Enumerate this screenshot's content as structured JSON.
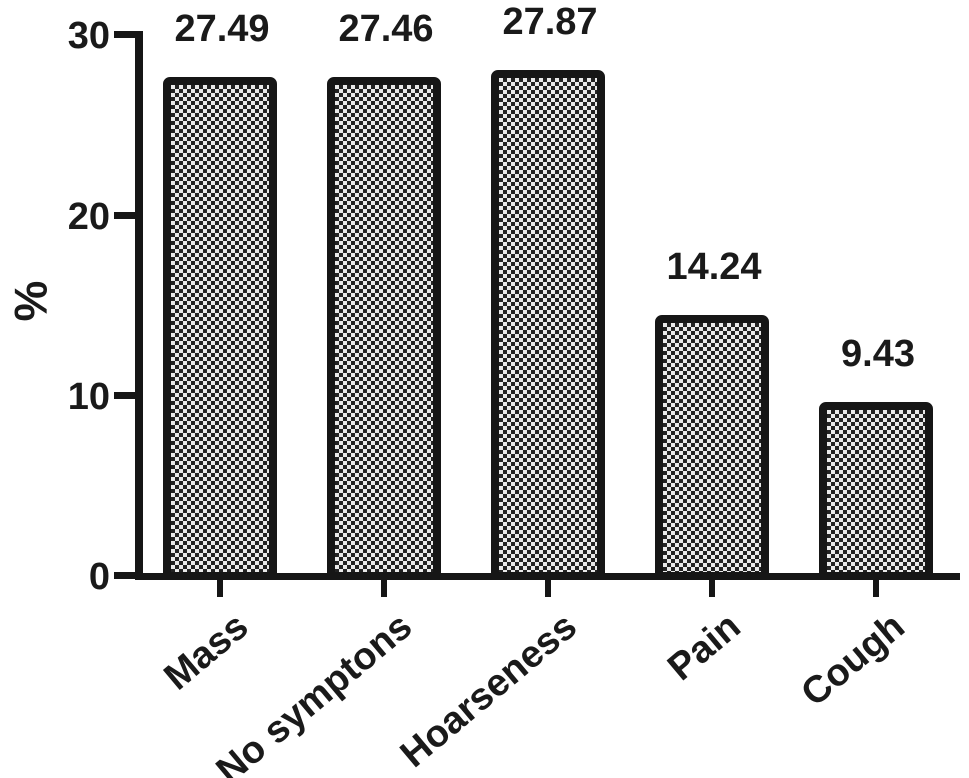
{
  "chart_data": {
    "type": "bar",
    "categories": [
      "Mass",
      "No symptons",
      "Hoarseness",
      "Pain",
      "Cough"
    ],
    "values": [
      27.49,
      27.46,
      27.87,
      14.24,
      9.43
    ],
    "value_labels": [
      "27.49",
      "27.46",
      "27.87",
      "14.24",
      "9.43"
    ],
    "title": "",
    "xlabel": "",
    "ylabel": "%",
    "ylim": [
      0,
      30
    ],
    "yticks": [
      0,
      10,
      20,
      30
    ],
    "grid": false,
    "legend": null,
    "bar_fill": "black-white-checkerboard-pattern",
    "bar_border_color": "#161616",
    "axis_color": "#161616",
    "text_color": "#1a1a1a",
    "background": "#ffffff"
  }
}
